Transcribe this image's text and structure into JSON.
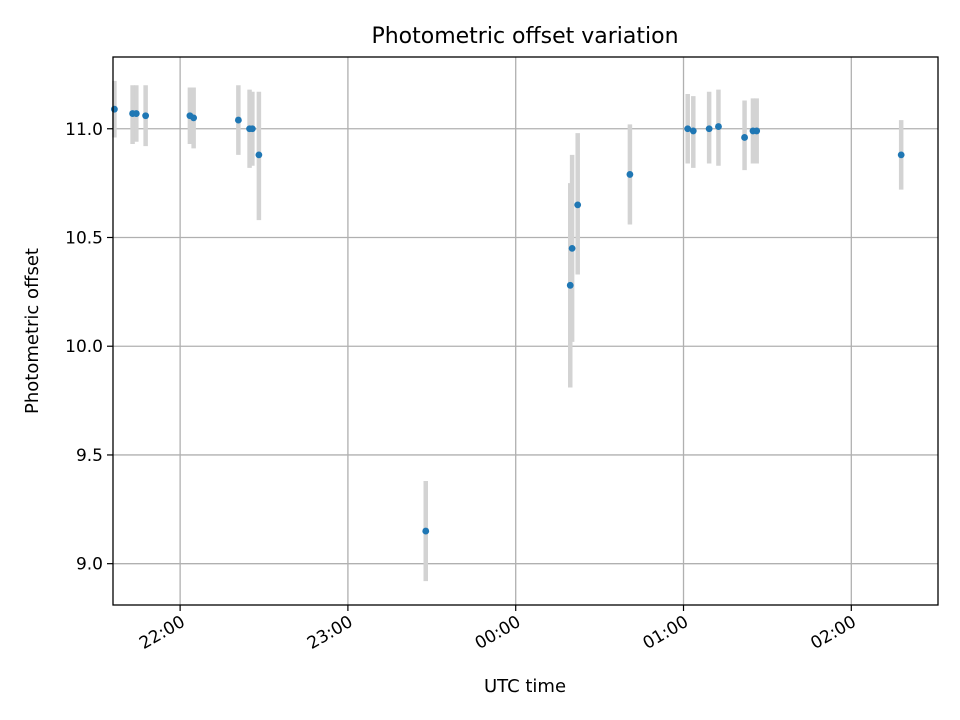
{
  "chart_data": {
    "type": "scatter",
    "title": "Photometric offset variation",
    "xlabel": "UTC time",
    "ylabel": "Photometric offset",
    "x_axis_type": "time",
    "xlim": [
      "21:36",
      "02:31"
    ],
    "ylim": [
      8.81,
      11.33
    ],
    "x_ticks": [
      "22:00",
      "23:00",
      "00:00",
      "01:00",
      "02:00"
    ],
    "y_ticks": [
      9.0,
      9.5,
      10.0,
      10.5,
      11.0
    ],
    "y_tick_labels": [
      "9.0",
      "9.5",
      "10.0",
      "10.5",
      "11.0"
    ],
    "grid": true,
    "colors": {
      "point": "#1f77b4",
      "error_bar": "#d3d3d3"
    },
    "series": [
      {
        "points": [
          {
            "t": "21:36:30",
            "y": 11.09,
            "lo": 10.96,
            "hi": 11.22
          },
          {
            "t": "21:43:00",
            "y": 11.07,
            "lo": 10.93,
            "hi": 11.2
          },
          {
            "t": "21:44:20",
            "y": 11.07,
            "lo": 10.94,
            "hi": 11.2
          },
          {
            "t": "21:47:40",
            "y": 11.06,
            "lo": 10.92,
            "hi": 11.2
          },
          {
            "t": "22:03:30",
            "y": 11.06,
            "lo": 10.93,
            "hi": 11.19
          },
          {
            "t": "22:04:50",
            "y": 11.05,
            "lo": 10.91,
            "hi": 11.19
          },
          {
            "t": "22:20:50",
            "y": 11.04,
            "lo": 10.88,
            "hi": 11.2
          },
          {
            "t": "22:24:50",
            "y": 11.0,
            "lo": 10.82,
            "hi": 11.18
          },
          {
            "t": "22:25:50",
            "y": 11.0,
            "lo": 10.83,
            "hi": 11.17
          },
          {
            "t": "22:28:10",
            "y": 10.88,
            "lo": 10.58,
            "hi": 11.17
          },
          {
            "t": "23:27:50",
            "y": 9.15,
            "lo": 8.92,
            "hi": 9.38
          },
          {
            "t": "00:19:30",
            "y": 10.28,
            "lo": 9.81,
            "hi": 10.75
          },
          {
            "t": "00:20:10",
            "y": 10.45,
            "lo": 10.02,
            "hi": 10.88
          },
          {
            "t": "00:22:10",
            "y": 10.65,
            "lo": 10.33,
            "hi": 10.98
          },
          {
            "t": "00:40:50",
            "y": 10.79,
            "lo": 10.56,
            "hi": 11.02
          },
          {
            "t": "01:01:30",
            "y": 11.0,
            "lo": 10.84,
            "hi": 11.16
          },
          {
            "t": "01:03:30",
            "y": 10.99,
            "lo": 10.82,
            "hi": 11.15
          },
          {
            "t": "01:09:10",
            "y": 11.0,
            "lo": 10.84,
            "hi": 11.17
          },
          {
            "t": "01:12:30",
            "y": 11.01,
            "lo": 10.83,
            "hi": 11.18
          },
          {
            "t": "01:21:50",
            "y": 10.96,
            "lo": 10.81,
            "hi": 11.13
          },
          {
            "t": "01:24:50",
            "y": 10.99,
            "lo": 10.84,
            "hi": 11.14
          },
          {
            "t": "01:26:10",
            "y": 10.99,
            "lo": 10.84,
            "hi": 11.14
          },
          {
            "t": "02:17:50",
            "y": 10.88,
            "lo": 10.72,
            "hi": 11.04
          }
        ]
      }
    ]
  }
}
